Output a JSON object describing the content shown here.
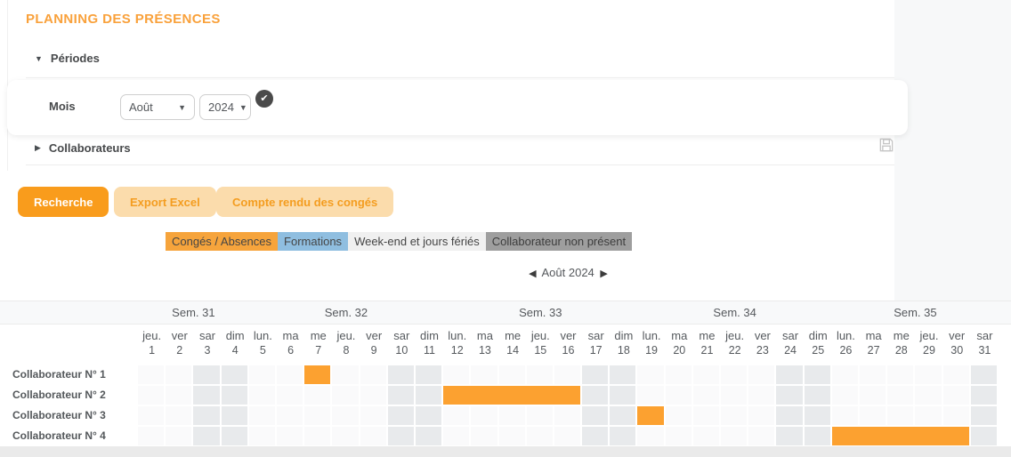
{
  "title": "PLANNING DES PRÉSENCES",
  "sections": {
    "periodes": {
      "label": "Périodes",
      "caret": "▼",
      "expanded": true
    },
    "collaborateurs": {
      "label": "Collaborateurs",
      "caret": "▶",
      "expanded": false
    }
  },
  "filters": {
    "mois_label": "Mois",
    "month_value": "Août",
    "year_value": "2024",
    "select_chevron": "▼",
    "check_glyph": "✔",
    "icons": {
      "validate": "check-circle-icon",
      "save": "save-icon"
    }
  },
  "actions": {
    "recherche": "Recherche",
    "export_excel": "Export Excel",
    "compte_rendu": "Compte rendu des congés"
  },
  "legend": {
    "items": [
      {
        "label": "Congés / Absences",
        "bg": "#f6a43c",
        "text": "#454545"
      },
      {
        "label": "Formations",
        "bg": "#8fbee0",
        "text": "#454545"
      },
      {
        "label": "Week-end et jours fériés",
        "bg": "#f0f0f0",
        "text": "#454545"
      },
      {
        "label": "Collaborateur non présent",
        "bg": "#9e9e9e",
        "text": "#3d3d3d"
      }
    ]
  },
  "calendar": {
    "nav": {
      "prev": "◀",
      "label": "Août 2024",
      "next": "▶"
    },
    "weeks": [
      {
        "label": "Sem. 31",
        "start": 1,
        "end": 4
      },
      {
        "label": "Sem. 32",
        "start": 5,
        "end": 11
      },
      {
        "label": "Sem. 33",
        "start": 12,
        "end": 18
      },
      {
        "label": "Sem. 34",
        "start": 19,
        "end": 25
      },
      {
        "label": "Sem. 35",
        "start": 26,
        "end": 31
      }
    ],
    "days": [
      {
        "d": "jeu.",
        "n": 1
      },
      {
        "d": "ver",
        "n": 2
      },
      {
        "d": "sar",
        "n": 3
      },
      {
        "d": "dim",
        "n": 4
      },
      {
        "d": "lun.",
        "n": 5
      },
      {
        "d": "ma",
        "n": 6
      },
      {
        "d": "me",
        "n": 7
      },
      {
        "d": "jeu.",
        "n": 8
      },
      {
        "d": "ver",
        "n": 9
      },
      {
        "d": "sar",
        "n": 10
      },
      {
        "d": "dim",
        "n": 11
      },
      {
        "d": "lun.",
        "n": 12
      },
      {
        "d": "ma",
        "n": 13
      },
      {
        "d": "me",
        "n": 14
      },
      {
        "d": "jeu.",
        "n": 15
      },
      {
        "d": "ver",
        "n": 16
      },
      {
        "d": "sar",
        "n": 17
      },
      {
        "d": "dim",
        "n": 18
      },
      {
        "d": "lun.",
        "n": 19
      },
      {
        "d": "ma",
        "n": 20
      },
      {
        "d": "me",
        "n": 21
      },
      {
        "d": "jeu.",
        "n": 22
      },
      {
        "d": "ver",
        "n": 23
      },
      {
        "d": "sar",
        "n": 24
      },
      {
        "d": "dim",
        "n": 25
      },
      {
        "d": "lun.",
        "n": 26
      },
      {
        "d": "ma",
        "n": 27
      },
      {
        "d": "me",
        "n": 28
      },
      {
        "d": "jeu.",
        "n": 29
      },
      {
        "d": "ver",
        "n": 30
      },
      {
        "d": "sar",
        "n": 31
      }
    ],
    "weekend_days": [
      3,
      4,
      10,
      11,
      17,
      18,
      24,
      25,
      31
    ],
    "rows": [
      {
        "label": "Collaborateur N° 1",
        "bars": [
          {
            "start": 7,
            "end": 7,
            "type": "conges"
          }
        ]
      },
      {
        "label": "Collaborateur N° 2",
        "bars": [
          {
            "start": 12,
            "end": 16,
            "type": "conges"
          }
        ]
      },
      {
        "label": "Collaborateur N° 3",
        "bars": [
          {
            "start": 19,
            "end": 19,
            "type": "conges"
          }
        ]
      },
      {
        "label": "Collaborateur N° 4",
        "bars": [
          {
            "start": 26,
            "end": 30,
            "type": "conges"
          }
        ]
      }
    ],
    "colors": {
      "conges": "#fca130",
      "weekday_cell": "#fafafb",
      "weekend_cell": "#e8eaec"
    }
  }
}
